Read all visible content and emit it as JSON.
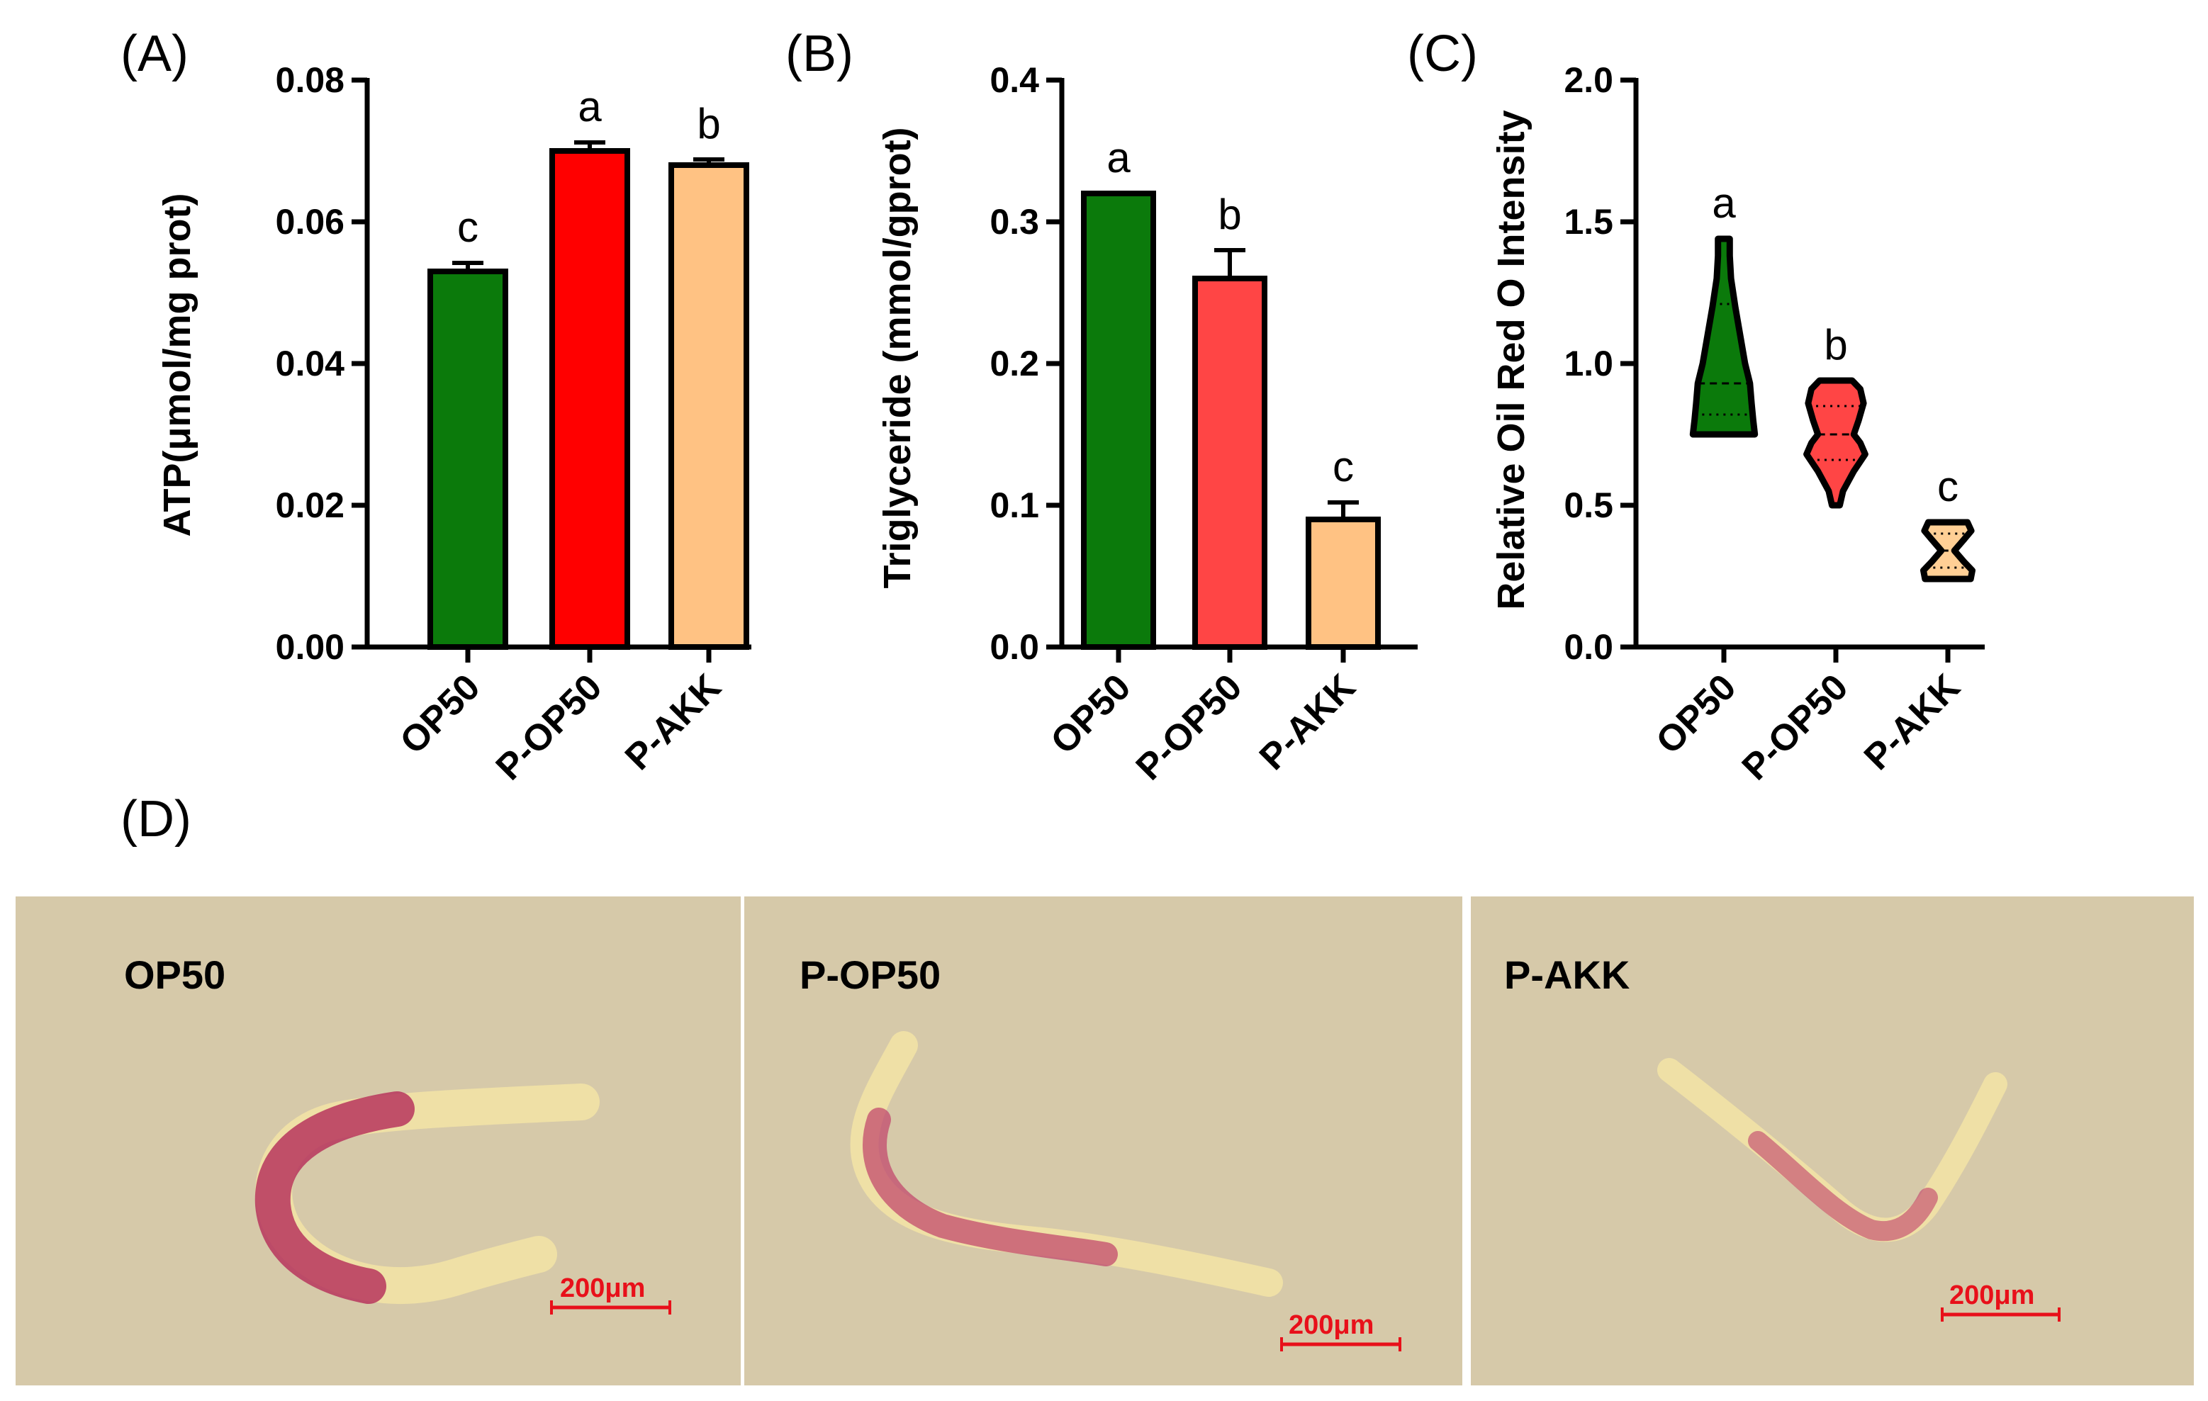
{
  "chart_data": [
    {
      "type": "bar",
      "panel": "(A)",
      "categories": [
        "OP50",
        "P-OP50",
        "P-AKK"
      ],
      "values": [
        0.053,
        0.07,
        0.068
      ],
      "errors": [
        0.0012,
        0.0012,
        0.0008
      ],
      "letters": [
        "c",
        "a",
        "b"
      ],
      "colors": [
        "#0b7a0b",
        "#ff0000",
        "#ffc283"
      ],
      "ylabel": "ATP(μmol/mg prot)",
      "ylim": [
        0,
        0.08
      ],
      "yticks": [
        0.0,
        0.02,
        0.04,
        0.06,
        0.08
      ],
      "ytick_labels": [
        "0.00",
        "0.02",
        "0.04",
        "0.06",
        "0.08"
      ]
    },
    {
      "type": "bar",
      "panel": "(B)",
      "categories": [
        "OP50",
        "P-OP50",
        "P-AKK"
      ],
      "values": [
        0.32,
        0.26,
        0.09
      ],
      "errors": [
        0.0,
        0.02,
        0.012
      ],
      "letters": [
        "a",
        "b",
        "c"
      ],
      "colors": [
        "#0b7a0b",
        "#ff4545",
        "#ffc283"
      ],
      "ylabel": "Triglyceride (mmol/gprot)",
      "ylim": [
        0,
        0.4
      ],
      "yticks": [
        0.0,
        0.1,
        0.2,
        0.3,
        0.4
      ],
      "ytick_labels": [
        "0.0",
        "0.1",
        "0.2",
        "0.3",
        "0.4"
      ]
    },
    {
      "type": "violin",
      "panel": "(C)",
      "categories": [
        "OP50",
        "P-OP50",
        "P-AKK"
      ],
      "violins": [
        {
          "min": 0.75,
          "max": 1.44,
          "median": 0.93,
          "q1": 0.82,
          "q3": 1.21,
          "profile": [
            [
              0.75,
              0.095
            ],
            [
              0.8,
              0.09
            ],
            [
              0.86,
              0.085
            ],
            [
              0.93,
              0.08
            ],
            [
              1.0,
              0.065
            ],
            [
              1.1,
              0.05
            ],
            [
              1.2,
              0.035
            ],
            [
              1.3,
              0.022
            ],
            [
              1.38,
              0.018
            ],
            [
              1.44,
              0.018
            ]
          ]
        },
        {
          "min": 0.5,
          "max": 0.94,
          "median": 0.75,
          "q1": 0.66,
          "q3": 0.85,
          "profile": [
            [
              0.5,
              0.012
            ],
            [
              0.55,
              0.022
            ],
            [
              0.62,
              0.055
            ],
            [
              0.68,
              0.09
            ],
            [
              0.72,
              0.075
            ],
            [
              0.75,
              0.055
            ],
            [
              0.8,
              0.07
            ],
            [
              0.86,
              0.085
            ],
            [
              0.91,
              0.075
            ],
            [
              0.94,
              0.05
            ]
          ]
        },
        {
          "min": 0.24,
          "max": 0.44,
          "median": 0.34,
          "q1": 0.28,
          "q3": 0.4,
          "profile": [
            [
              0.24,
              0.07
            ],
            [
              0.27,
              0.075
            ],
            [
              0.3,
              0.05
            ],
            [
              0.34,
              0.02
            ],
            [
              0.38,
              0.05
            ],
            [
              0.41,
              0.072
            ],
            [
              0.44,
              0.06
            ]
          ]
        }
      ],
      "letters": [
        "a",
        "b",
        "c"
      ],
      "colors": [
        "#0b7a0b",
        "#ff4545",
        "#ffcf95"
      ],
      "ylabel": "Relative Oil Red O Intensity",
      "ylim": [
        0,
        2.0
      ],
      "yticks": [
        0.0,
        0.5,
        1.0,
        1.5,
        2.0
      ],
      "ytick_labels": [
        "0.0",
        "0.5",
        "1.0",
        "1.5",
        "2.0"
      ]
    }
  ],
  "panel_d": {
    "label": "(D)",
    "images": [
      {
        "title": "OP50",
        "scale_bar": "200μm"
      },
      {
        "title": "P-OP50",
        "scale_bar": "200μm"
      },
      {
        "title": "P-AKK",
        "scale_bar": "200μm"
      }
    ]
  }
}
